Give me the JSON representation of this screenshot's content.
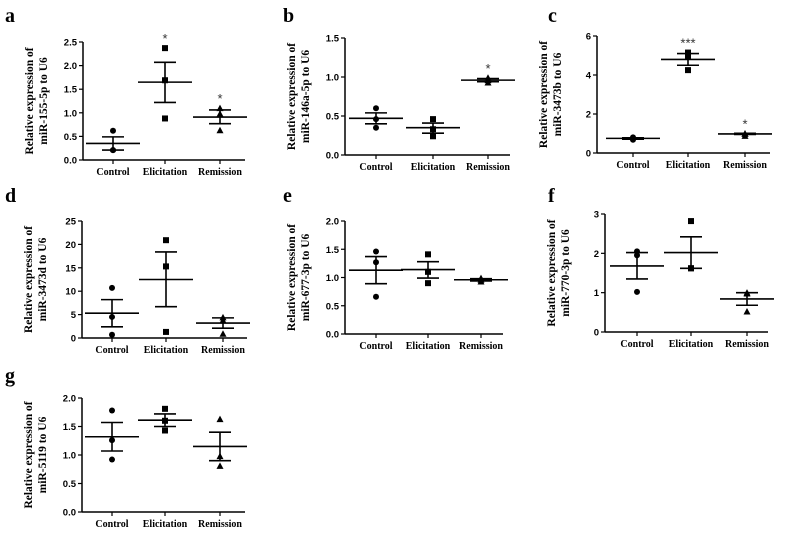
{
  "chart_data": [
    {
      "panel": "a",
      "type": "scatter",
      "ylabel": [
        "Relative expression of",
        "miR-155-5p to U6"
      ],
      "categories": [
        "Control",
        "Elicitation",
        "Remission"
      ],
      "ylim": [
        0,
        2.5
      ],
      "yticks": [
        "0.0",
        "0.5",
        "1.0",
        "1.5",
        "2.0",
        "2.5"
      ],
      "ytick_values": [
        0,
        0.5,
        1,
        1.5,
        2,
        2.5
      ],
      "groups": [
        {
          "points": [
            0.62,
            0.21,
            0.21
          ],
          "mean": 0.35,
          "sem": [
            0.21,
            0.49
          ],
          "sig": ""
        },
        {
          "points": [
            2.37,
            1.69,
            0.88
          ],
          "mean": 1.65,
          "sem": [
            1.22,
            2.07
          ],
          "sig": "*"
        },
        {
          "points": [
            1.1,
            0.98,
            0.63
          ],
          "mean": 0.91,
          "sem": [
            0.77,
            1.06
          ],
          "sig": "*"
        }
      ]
    },
    {
      "panel": "b",
      "type": "scatter",
      "ylabel": [
        "Relative expression of",
        "miR-146a-5p to U6"
      ],
      "categories": [
        "Control",
        "Elicitation",
        "Remission"
      ],
      "ylim": [
        0,
        1.5
      ],
      "yticks": [
        "0.0",
        "0.5",
        "1.0",
        "1.5"
      ],
      "ytick_values": [
        0,
        0.5,
        1,
        1.5
      ],
      "groups": [
        {
          "points": [
            0.6,
            0.46,
            0.35
          ],
          "mean": 0.47,
          "sem": [
            0.4,
            0.54
          ],
          "sig": ""
        },
        {
          "points": [
            0.46,
            0.33,
            0.24
          ],
          "mean": 0.35,
          "sem": [
            0.28,
            0.41
          ],
          "sig": ""
        },
        {
          "points": [
            0.99,
            0.96,
            0.93
          ],
          "mean": 0.96,
          "sem": [
            0.94,
            0.98
          ],
          "sig": "*"
        }
      ]
    },
    {
      "panel": "c",
      "type": "scatter",
      "ylabel": [
        "Relative expression of",
        "miR-3473b to U6"
      ],
      "categories": [
        "Control",
        "Elicitation",
        "Remission"
      ],
      "ylim": [
        0,
        6
      ],
      "yticks": [
        "0",
        "2",
        "4",
        "6"
      ],
      "ytick_values": [
        0,
        2,
        4,
        6
      ],
      "groups": [
        {
          "points": [
            0.8,
            0.75,
            0.68
          ],
          "mean": 0.75,
          "sem": [
            0.71,
            0.78
          ],
          "sig": ""
        },
        {
          "points": [
            5.15,
            4.95,
            4.25
          ],
          "mean": 4.8,
          "sem": [
            4.5,
            5.1
          ],
          "sig": "***"
        },
        {
          "points": [
            1.0,
            0.98,
            0.88
          ],
          "mean": 0.98,
          "sem": [
            0.95,
            1.01
          ],
          "sig": "*"
        }
      ]
    },
    {
      "panel": "d",
      "type": "scatter",
      "ylabel": [
        "Relative expression of",
        "miR-3473d to U6"
      ],
      "categories": [
        "Control",
        "Elicitation",
        "Remission"
      ],
      "ylim": [
        0,
        25
      ],
      "yticks": [
        "0",
        "5",
        "10",
        "15",
        "20",
        "25"
      ],
      "ytick_values": [
        0,
        5,
        10,
        15,
        20,
        25
      ],
      "groups": [
        {
          "points": [
            10.7,
            4.5,
            0.7
          ],
          "mean": 5.3,
          "sem": [
            2.4,
            8.2
          ],
          "sig": ""
        },
        {
          "points": [
            20.9,
            15.3,
            1.3
          ],
          "mean": 12.5,
          "sem": [
            6.7,
            18.4
          ],
          "sig": ""
        },
        {
          "points": [
            4.4,
            3.8,
            0.9
          ],
          "mean": 3.2,
          "sem": [
            2.1,
            4.3
          ],
          "sig": ""
        }
      ]
    },
    {
      "panel": "e",
      "type": "scatter",
      "ylabel": [
        "Relative expression of",
        "miR-677-3p to U6"
      ],
      "categories": [
        "Control",
        "Elicitation",
        "Remission"
      ],
      "ylim": [
        0,
        2
      ],
      "yticks": [
        "0.0",
        "0.5",
        "1.0",
        "1.5",
        "2.0"
      ],
      "ytick_values": [
        0,
        0.5,
        1,
        1.5,
        2
      ],
      "groups": [
        {
          "points": [
            1.46,
            1.27,
            0.66
          ],
          "mean": 1.13,
          "sem": [
            0.89,
            1.37
          ],
          "sig": ""
        },
        {
          "points": [
            1.41,
            1.1,
            0.9
          ],
          "mean": 1.14,
          "sem": [
            0.99,
            1.28
          ],
          "sig": ""
        },
        {
          "points": [
            0.99,
            0.96,
            0.93
          ],
          "mean": 0.96,
          "sem": [
            0.94,
            0.98
          ],
          "sig": ""
        }
      ]
    },
    {
      "panel": "f",
      "type": "scatter",
      "ylabel": [
        "Relative expression of",
        "miR-770-3p to U6"
      ],
      "categories": [
        "Control",
        "Elicitation",
        "Remission"
      ],
      "ylim": [
        0,
        3
      ],
      "yticks": [
        "0",
        "1",
        "2",
        "3"
      ],
      "ytick_values": [
        0,
        1,
        2,
        3
      ],
      "groups": [
        {
          "points": [
            2.05,
            1.95,
            1.02
          ],
          "mean": 1.68,
          "sem": [
            1.35,
            2.02
          ],
          "sig": ""
        },
        {
          "points": [
            2.82,
            1.62,
            1.62
          ],
          "mean": 2.02,
          "sem": [
            1.62,
            2.42
          ],
          "sig": ""
        },
        {
          "points": [
            1.0,
            0.98,
            0.52
          ],
          "mean": 0.84,
          "sem": [
            0.68,
            1.0
          ],
          "sig": ""
        }
      ]
    },
    {
      "panel": "g",
      "type": "scatter",
      "ylabel": [
        "Relative expression of",
        "miR-5119 to U6"
      ],
      "categories": [
        "Control",
        "Elicitation",
        "Remission"
      ],
      "ylim": [
        0,
        2
      ],
      "yticks": [
        "0.0",
        "0.5",
        "1.0",
        "1.5",
        "2.0"
      ],
      "ytick_values": [
        0,
        0.5,
        1,
        1.5,
        2
      ],
      "groups": [
        {
          "points": [
            1.78,
            1.26,
            0.92
          ],
          "mean": 1.32,
          "sem": [
            1.07,
            1.57
          ],
          "sig": ""
        },
        {
          "points": [
            1.81,
            1.6,
            1.43
          ],
          "mean": 1.61,
          "sem": [
            1.5,
            1.72
          ],
          "sig": ""
        },
        {
          "points": [
            1.63,
            0.98,
            0.81
          ],
          "mean": 1.15,
          "sem": [
            0.9,
            1.4
          ],
          "sig": ""
        }
      ]
    }
  ]
}
